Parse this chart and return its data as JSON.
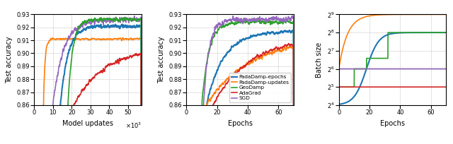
{
  "fig_width": 6.4,
  "fig_height": 2.04,
  "dpi": 100,
  "colors": {
    "padadamp_epochs": "#1f77b4",
    "padadamp_updates": "#ff7f0e",
    "geodamp": "#2ca02c",
    "adagrad": "#d62728",
    "sgd": "#9467bd"
  },
  "panel1": {
    "xlabel": "Model updates",
    "ylabel": "Test accuracy",
    "xlim": [
      0,
      57000
    ],
    "ylim": [
      0.86,
      0.93
    ],
    "xticks": [
      0,
      10000,
      20000,
      30000,
      40000,
      50000
    ],
    "xtick_labels": [
      "0",
      "10",
      "20",
      "30",
      "40",
      "50"
    ],
    "yticks": [
      0.86,
      0.87,
      0.88,
      0.89,
      0.9,
      0.91,
      0.92,
      0.93
    ]
  },
  "panel2": {
    "xlabel": "Epochs",
    "ylabel": "Test accuracy",
    "xlim": [
      0,
      70
    ],
    "ylim": [
      0.86,
      0.93
    ],
    "xticks": [
      0,
      20,
      40,
      60
    ],
    "yticks": [
      0.86,
      0.87,
      0.88,
      0.89,
      0.9,
      0.91,
      0.92,
      0.93
    ],
    "legend": [
      "PadaDamp-epochs",
      "PadaDamp-updates",
      "GeoDamp",
      "AdaGrad",
      "SGD"
    ]
  },
  "panel3": {
    "xlabel": "Epochs",
    "ylabel": "Batch size",
    "xlim": [
      0,
      70
    ],
    "ylim_log2": [
      4,
      9
    ],
    "xticks": [
      0,
      20,
      40,
      60
    ],
    "yticks_log2": [
      4,
      5,
      6,
      7,
      8,
      9
    ],
    "geodamp_steps": [
      [
        0,
        5
      ],
      [
        10,
        5
      ],
      [
        10,
        6
      ],
      [
        18,
        6
      ],
      [
        18,
        6.58
      ],
      [
        30,
        6.58
      ],
      [
        30,
        8
      ],
      [
        70,
        8
      ]
    ],
    "blue_start": 2,
    "blue_end_log2": 8,
    "orange_rate": 0.15
  }
}
